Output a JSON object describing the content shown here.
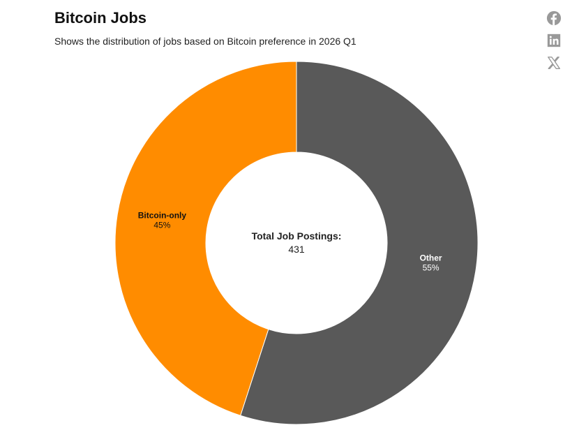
{
  "header": {
    "title": "Bitcoin Jobs",
    "subtitle": "Shows the distribution of jobs based on Bitcoin preference in 2026 Q1"
  },
  "share": [
    {
      "name": "facebook-icon"
    },
    {
      "name": "linkedin-icon"
    },
    {
      "name": "x-icon"
    }
  ],
  "chart_data": {
    "type": "pie",
    "variant": "donut",
    "title": "Bitcoin Jobs",
    "subtitle": "Shows the distribution of jobs based on Bitcoin preference in 2026 Q1",
    "center_label": "Total Job Postings:",
    "center_value": "431",
    "slices": [
      {
        "label": "Other",
        "value": 55,
        "display": "55%",
        "color": "#595959",
        "text_color": "#ffffff"
      },
      {
        "label": "Bitcoin-only",
        "value": 45,
        "display": "45%",
        "color": "#ff8c00",
        "text_color": "#111111"
      }
    ]
  }
}
